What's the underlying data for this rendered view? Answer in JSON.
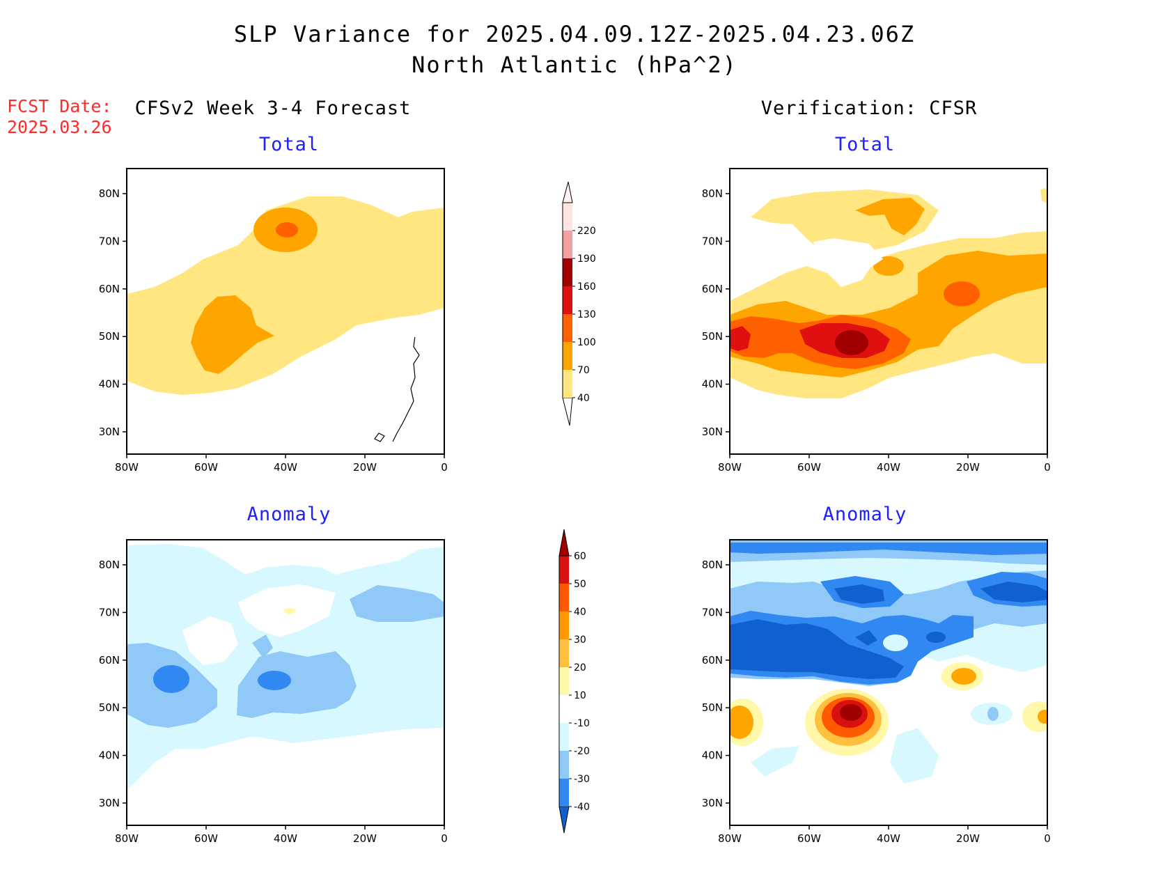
{
  "header": {
    "title_line1": "SLP Variance for 2025.04.09.12Z-2025.04.23.06Z",
    "title_line2": "North Atlantic (hPa^2)",
    "fcst_label": "FCST Date:",
    "fcst_date": "2025.03.26"
  },
  "columns": {
    "left": "CFSv2 Week 3-4 Forecast",
    "right": "Verification: CFSR"
  },
  "panels": {
    "total_label": "Total",
    "anomaly_label": "Anomaly"
  },
  "axes": {
    "lat_ticks": [
      "80N",
      "70N",
      "60N",
      "50N",
      "40N",
      "30N"
    ],
    "lon_ticks": [
      "80W",
      "60W",
      "40W",
      "20W",
      "0"
    ]
  },
  "colorbar_total": {
    "levels": [
      "40",
      "70",
      "100",
      "130",
      "160",
      "190",
      "220"
    ],
    "colors": [
      "#ffe680",
      "#ffa500",
      "#ff6000",
      "#e01010",
      "#a00000",
      "#f4a0a0",
      "#ffe4e4"
    ]
  },
  "colorbar_anomaly": {
    "levels": [
      "-40",
      "-30",
      "-20",
      "-10",
      "10",
      "20",
      "30",
      "40",
      "50",
      "60"
    ],
    "colors": [
      "#1060d0",
      "#3088f0",
      "#90c8f8",
      "#d8f8ff",
      "#ffffff",
      "#fff8a8",
      "#ffc040",
      "#ff9a00",
      "#ff5a00",
      "#d81010",
      "#a00000"
    ]
  }
}
